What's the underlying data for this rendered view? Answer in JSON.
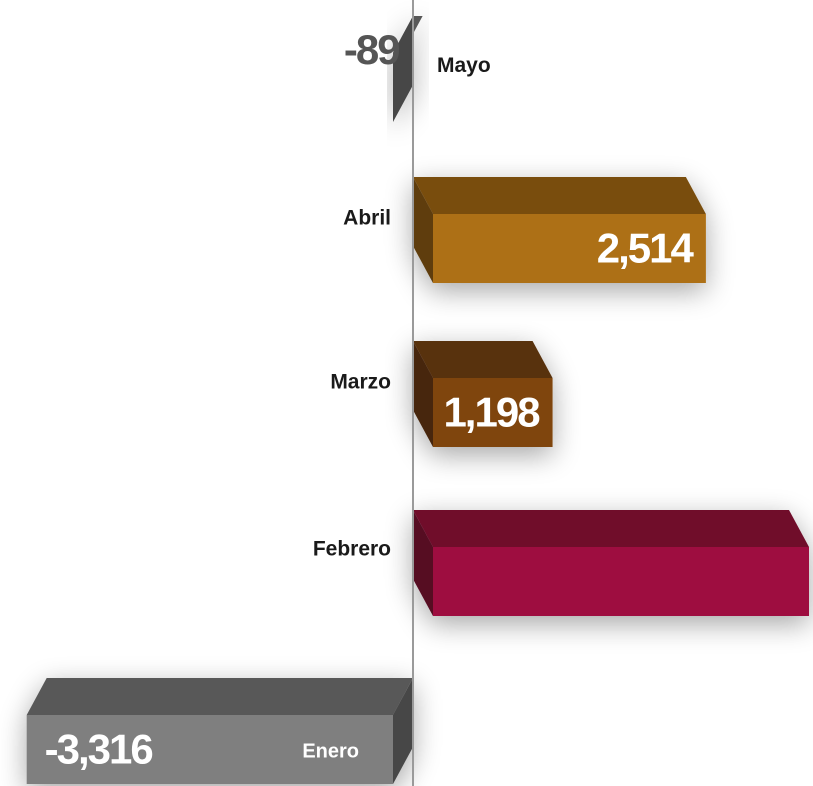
{
  "chart_data": {
    "type": "bar",
    "orientation": "horizontal",
    "style": "3d",
    "title": "",
    "xlabel": "",
    "ylabel": "",
    "grid": false,
    "categories": [
      "Mayo",
      "Abril",
      "Marzo",
      "Febrero",
      "Enero"
    ],
    "series": [
      {
        "values": [
          -89,
          2514,
          1198,
          null,
          -3316
        ],
        "value_labels": [
          "-89",
          "2,514",
          "1,198",
          "",
          "-3,316"
        ],
        "colors": [
          "#7f7f7f",
          "#ad6f14",
          "#7f4410",
          "#9e0f3f",
          "#7f7f7f"
        ]
      }
    ],
    "notes_visible": "Febrero bar shown without a printed value; its length extends beyond the right edge"
  }
}
